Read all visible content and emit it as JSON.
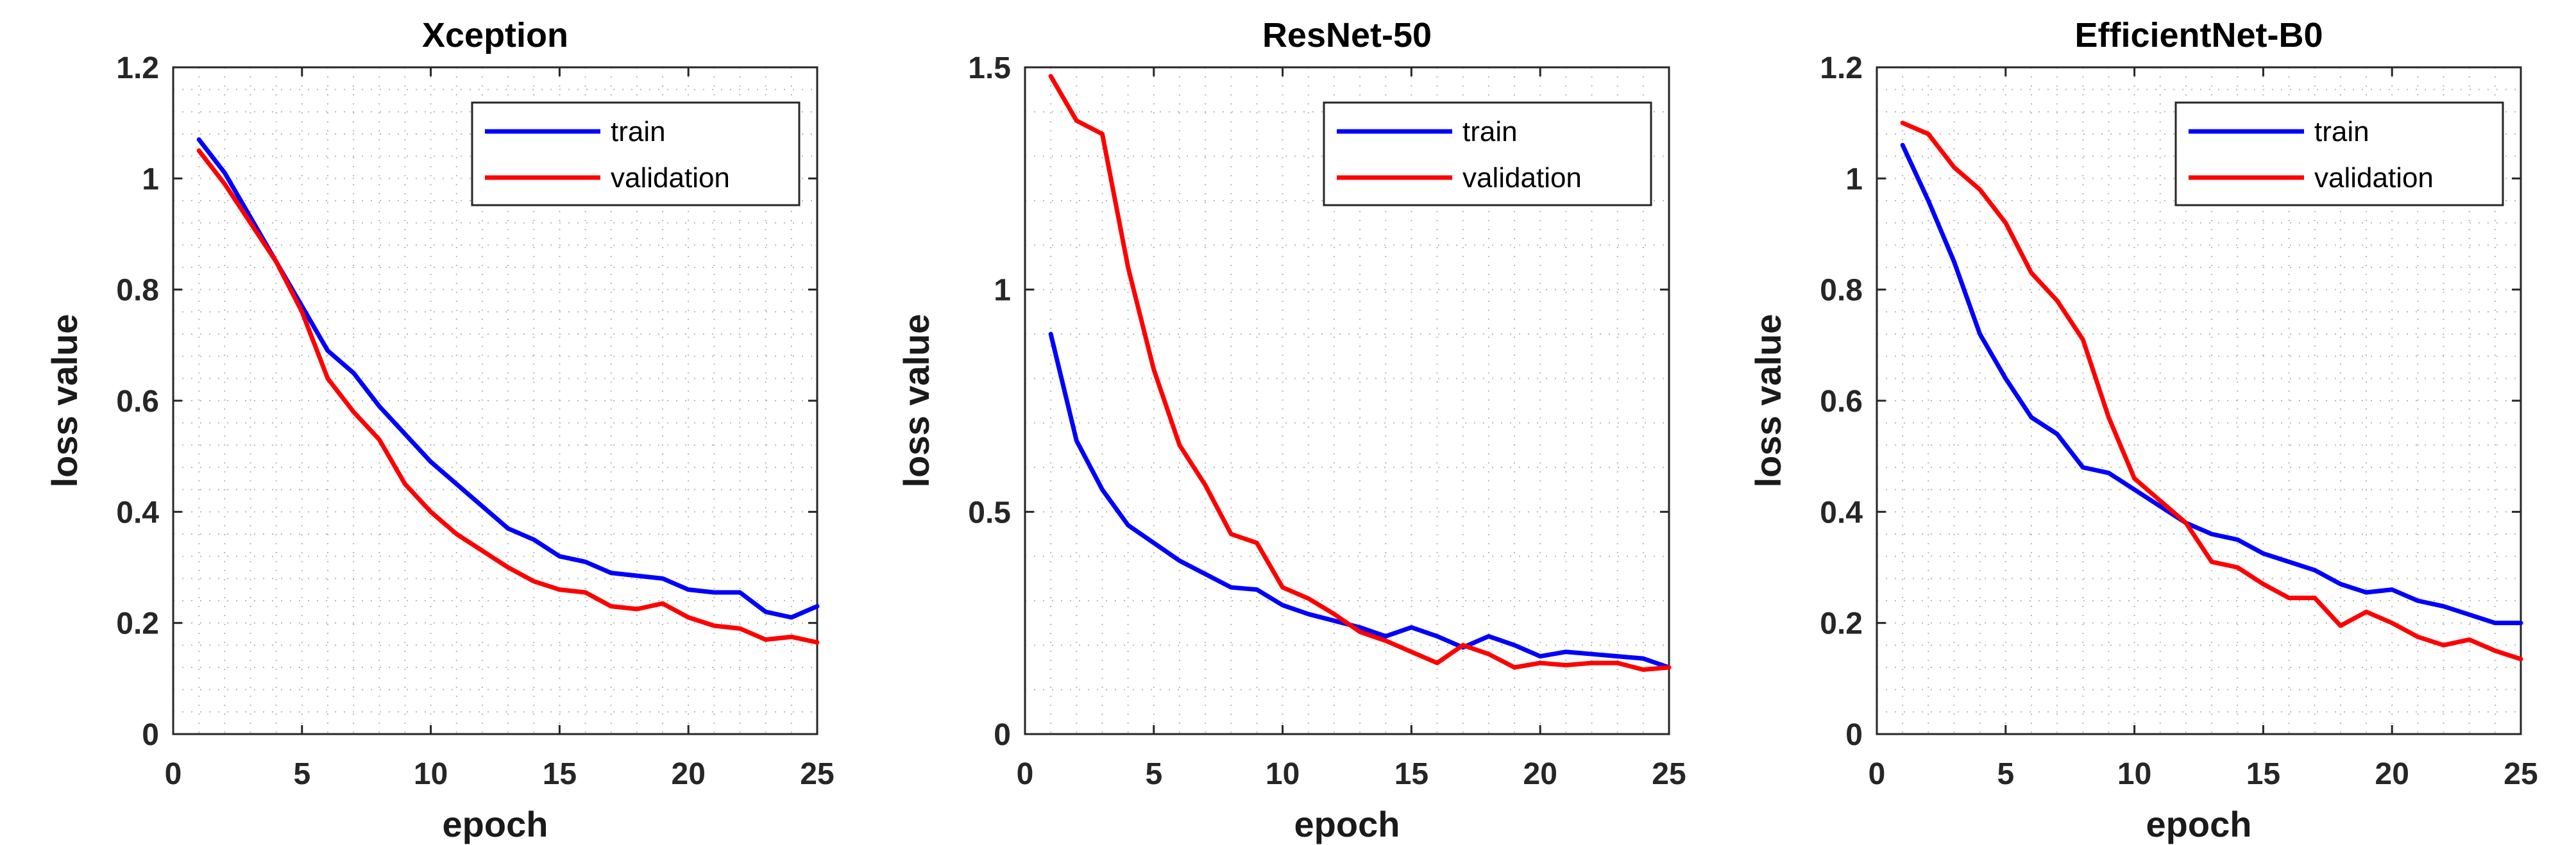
{
  "chart_data": [
    {
      "type": "line",
      "title": "Xception",
      "xlabel": "epoch",
      "ylabel": "loss value",
      "xlim": [
        0,
        25
      ],
      "ylim": [
        0,
        1.2
      ],
      "xticks": [
        0,
        5,
        10,
        15,
        20,
        25
      ],
      "yticks": [
        0,
        0.2,
        0.4,
        0.6,
        0.8,
        1,
        1.2
      ],
      "grid": true,
      "legend_position": "top-right",
      "x": [
        1,
        2,
        3,
        4,
        5,
        6,
        7,
        8,
        9,
        10,
        11,
        12,
        13,
        14,
        15,
        16,
        17,
        18,
        19,
        20,
        21,
        22,
        23,
        24,
        25
      ],
      "series": [
        {
          "name": "train",
          "color": "#0000ff",
          "values": [
            1.07,
            1.01,
            0.93,
            0.85,
            0.77,
            0.69,
            0.65,
            0.59,
            0.54,
            0.49,
            0.45,
            0.41,
            0.37,
            0.35,
            0.32,
            0.31,
            0.29,
            0.285,
            0.28,
            0.26,
            0.255,
            0.255,
            0.22,
            0.21,
            0.23
          ]
        },
        {
          "name": "validation",
          "color": "#ff0000",
          "values": [
            1.05,
            0.99,
            0.92,
            0.85,
            0.76,
            0.64,
            0.58,
            0.53,
            0.45,
            0.4,
            0.36,
            0.33,
            0.3,
            0.275,
            0.26,
            0.255,
            0.23,
            0.225,
            0.235,
            0.21,
            0.195,
            0.19,
            0.17,
            0.175,
            0.165
          ]
        }
      ]
    },
    {
      "type": "line",
      "title": "ResNet-50",
      "xlabel": "epoch",
      "ylabel": "loss value",
      "xlim": [
        0,
        25
      ],
      "ylim": [
        0,
        1.5
      ],
      "xticks": [
        0,
        5,
        10,
        15,
        20,
        25
      ],
      "yticks": [
        0,
        0.5,
        1,
        1.5
      ],
      "grid": true,
      "legend_position": "top-right",
      "x": [
        1,
        2,
        3,
        4,
        5,
        6,
        7,
        8,
        9,
        10,
        11,
        12,
        13,
        14,
        15,
        16,
        17,
        18,
        19,
        20,
        21,
        22,
        23,
        24,
        25
      ],
      "series": [
        {
          "name": "train",
          "color": "#0000ff",
          "values": [
            0.9,
            0.66,
            0.55,
            0.47,
            0.43,
            0.39,
            0.36,
            0.33,
            0.325,
            0.29,
            0.27,
            0.255,
            0.24,
            0.22,
            0.24,
            0.22,
            0.195,
            0.22,
            0.2,
            0.175,
            0.185,
            0.18,
            0.175,
            0.17,
            0.15
          ]
        },
        {
          "name": "validation",
          "color": "#ff0000",
          "values": [
            1.48,
            1.38,
            1.35,
            1.05,
            0.82,
            0.65,
            0.56,
            0.45,
            0.43,
            0.33,
            0.305,
            0.27,
            0.23,
            0.21,
            0.185,
            0.16,
            0.2,
            0.18,
            0.15,
            0.16,
            0.155,
            0.16,
            0.16,
            0.145,
            0.15
          ]
        }
      ]
    },
    {
      "type": "line",
      "title": "EfficientNet-B0",
      "xlabel": "epoch",
      "ylabel": "loss value",
      "xlim": [
        0,
        25
      ],
      "ylim": [
        0,
        1.2
      ],
      "xticks": [
        0,
        5,
        10,
        15,
        20,
        25
      ],
      "yticks": [
        0,
        0.2,
        0.4,
        0.6,
        0.8,
        1,
        1.2
      ],
      "grid": true,
      "legend_position": "top-right",
      "x": [
        1,
        2,
        3,
        4,
        5,
        6,
        7,
        8,
        9,
        10,
        11,
        12,
        13,
        14,
        15,
        16,
        17,
        18,
        19,
        20,
        21,
        22,
        23,
        24,
        25
      ],
      "series": [
        {
          "name": "train",
          "color": "#0000ff",
          "values": [
            1.06,
            0.96,
            0.85,
            0.72,
            0.64,
            0.57,
            0.54,
            0.48,
            0.47,
            0.44,
            0.41,
            0.38,
            0.36,
            0.35,
            0.325,
            0.31,
            0.295,
            0.27,
            0.255,
            0.26,
            0.24,
            0.23,
            0.215,
            0.2,
            0.2
          ]
        },
        {
          "name": "validation",
          "color": "#ff0000",
          "values": [
            1.1,
            1.08,
            1.02,
            0.98,
            0.92,
            0.83,
            0.78,
            0.71,
            0.57,
            0.46,
            0.42,
            0.38,
            0.31,
            0.3,
            0.27,
            0.245,
            0.245,
            0.195,
            0.22,
            0.2,
            0.175,
            0.16,
            0.17,
            0.15,
            0.135
          ]
        }
      ]
    }
  ]
}
